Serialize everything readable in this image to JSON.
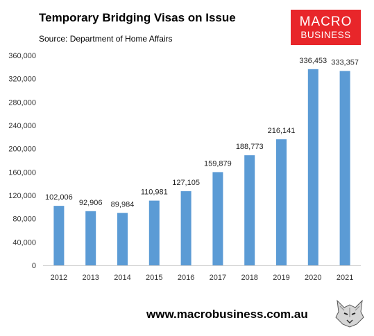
{
  "header": {
    "title": "Temporary Bridging Visas on Issue",
    "source": "Source: Department of Home Affairs"
  },
  "logo": {
    "line1": "MACRO",
    "line2": "BUSINESS",
    "color": "#e8262a"
  },
  "footer": {
    "url": "www.macrobusiness.com.au",
    "emblem_icon": "wolf-head-icon"
  },
  "chart_data": {
    "type": "bar",
    "categories": [
      "2012",
      "2013",
      "2014",
      "2015",
      "2016",
      "2017",
      "2018",
      "2019",
      "2020",
      "2021"
    ],
    "values": [
      102006,
      92906,
      89984,
      110981,
      127105,
      159879,
      188773,
      216141,
      336453,
      333357
    ],
    "data_labels": [
      "102,006",
      "92,906",
      "89,984",
      "110,981",
      "127,105",
      "159,879",
      "188,773",
      "216,141",
      "336,453",
      "333,357"
    ],
    "ylim": [
      0,
      360000
    ],
    "yticks": [
      0,
      40000,
      80000,
      120000,
      160000,
      200000,
      240000,
      280000,
      320000,
      360000
    ],
    "ytick_labels": [
      "0",
      "40,000",
      "80,000",
      "120,000",
      "160,000",
      "200,000",
      "240,000",
      "280,000",
      "320,000",
      "360,000"
    ],
    "bar_color": "#5b9bd5",
    "grid": false,
    "legend": "none",
    "title": "Temporary Bridging Visas on Issue",
    "xlabel": "",
    "ylabel": ""
  }
}
